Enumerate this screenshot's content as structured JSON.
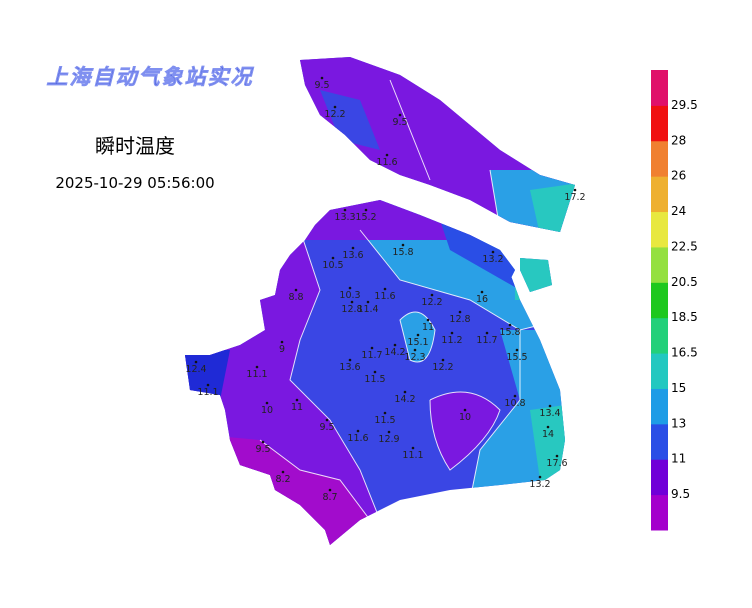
{
  "header": {
    "title": "上海自动气象站实况",
    "element": "瞬时温度",
    "time": "2025-10-29 05:56:00"
  },
  "stations": [
    9.5,
    12.2,
    9.5,
    11.6,
    17.2,
    13.3,
    15.2,
    15.8,
    13.2,
    13.6,
    10.5,
    16,
    12.2,
    10.3,
    11.6,
    8.8,
    12.8,
    12.8,
    11.4,
    11,
    15.1,
    11.2,
    11.7,
    15.8,
    12.3,
    14.2,
    11.7,
    15.5,
    12.2,
    13.6,
    11.5,
    9,
    12.4,
    11.1,
    11.1,
    14.2,
    10,
    11,
    10,
    10.8,
    13.4,
    11.5,
    9.5,
    14,
    11.6,
    12.9,
    9.5,
    11.1,
    17.6,
    13.2,
    8.2,
    8.7
  ],
  "colorbar": {
    "levels": [
      9.5,
      11,
      13,
      15,
      16.5,
      18.5,
      20.5,
      22.5,
      24,
      26,
      28,
      29.5
    ],
    "colors": [
      "#a400cc",
      "#7000d8",
      "#2a4ee6",
      "#1e9ce6",
      "#22c8c0",
      "#22d07a",
      "#1ec81e",
      "#94e040",
      "#e8e840",
      "#eeb030",
      "#f08030",
      "#f01010",
      "#e0106a"
    ]
  }
}
